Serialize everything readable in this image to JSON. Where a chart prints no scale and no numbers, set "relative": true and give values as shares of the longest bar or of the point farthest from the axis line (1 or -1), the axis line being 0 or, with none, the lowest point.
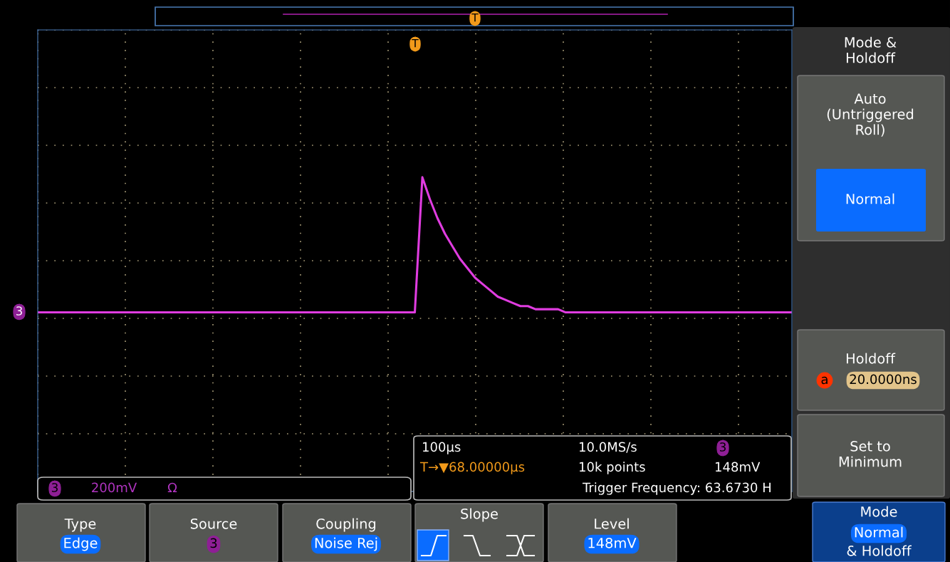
{
  "chart_data": {
    "type": "line",
    "relative": true,
    "grid": true,
    "categories": [
      null,
      null,
      null,
      null,
      null,
      null,
      null,
      null,
      null,
      null,
      null,
      null,
      null,
      null,
      null,
      null,
      null,
      null,
      null,
      null,
      null,
      null,
      null,
      null,
      null,
      null,
      null,
      null,
      null,
      null,
      null,
      null,
      null,
      null,
      null,
      null,
      null,
      null,
      null,
      null,
      null,
      null,
      null,
      null,
      null,
      null,
      null,
      null,
      null,
      null,
      null,
      null,
      null,
      null,
      null,
      null,
      null,
      null,
      null,
      null,
      null,
      null,
      null,
      null,
      null,
      null,
      null,
      null,
      null,
      null,
      null,
      null,
      null,
      null,
      null,
      null,
      null,
      null,
      null,
      null,
      null,
      null,
      null,
      null,
      null,
      null,
      null,
      null,
      null,
      null,
      null,
      null,
      null,
      null,
      null,
      null,
      null,
      null,
      null,
      null,
      null
    ],
    "series": [
      {
        "color": "#e03ce0",
        "values": [
          0.57,
          0.57,
          0.57,
          0.57,
          0.57,
          0.57,
          0.57,
          0.57,
          0.57,
          0.57,
          0.57,
          0.57,
          0.57,
          0.57,
          0.57,
          0.57,
          0.57,
          0.57,
          0.57,
          0.57,
          0.57,
          0.57,
          0.57,
          0.57,
          0.57,
          0.57,
          0.57,
          0.57,
          0.57,
          0.57,
          0.57,
          0.57,
          0.57,
          0.57,
          0.57,
          0.57,
          0.57,
          0.57,
          0.57,
          0.57,
          0.57,
          0.57,
          0.57,
          0.57,
          0.57,
          0.57,
          0.57,
          0.57,
          0.57,
          0.57,
          0.57,
          1,
          0.93,
          0.87,
          0.82,
          0.78,
          0.74,
          0.71,
          0.68,
          0.66,
          0.64,
          0.62,
          0.61,
          0.6,
          0.59,
          0.59,
          0.58,
          0.58,
          0.58,
          0.58,
          0.57,
          0.57,
          0.57,
          0.57,
          0.57,
          0.57,
          0.57,
          0.57,
          0.57,
          0.57,
          0.57,
          0.57,
          0.57,
          0.57,
          0.57,
          0.57,
          0.57,
          0.57,
          0.57,
          0.57,
          0.57,
          0.57,
          0.57,
          0.57,
          0.57,
          0.57,
          0.57,
          0.57,
          0.57,
          0.57,
          0.57
        ]
      }
    ],
    "annotations": [
      "3",
      "T",
      "T",
      "3",
      "200mV",
      "Ω",
      "100µs",
      "T→▼68.00000µs",
      "10.0MS/s",
      "10k points",
      "3",
      "148mV",
      "Trigger Frequency: 63.6730 H",
      "Mode &\nHoldoff",
      "Auto\n(Untriggered\nRoll)",
      "Normal",
      "Holdoff",
      "a",
      "20.0000ns",
      "Set to\nMinimum",
      "Type",
      "Edge",
      "Source",
      "3",
      "Coupling",
      "Noise Rej",
      "Slope",
      "Level",
      "148mV",
      "Mode",
      "Normal",
      "& Holdoff"
    ]
  }
}
